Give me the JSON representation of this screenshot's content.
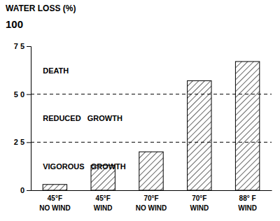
{
  "chart_data": {
    "type": "bar",
    "y_label": "WATER LOSS (%)",
    "y_label_note": "100",
    "categories": [
      [
        "45°F",
        "NO WIND"
      ],
      [
        "45°F",
        "WIND"
      ],
      [
        "70°F",
        "NO WIND"
      ],
      [
        "70°F",
        "WIND"
      ],
      [
        "88° F",
        "WIND"
      ]
    ],
    "values": [
      3,
      13,
      20,
      57,
      67
    ],
    "color": "white",
    "ylim": [
      0,
      75
    ],
    "yticks": [
      0,
      {
        "value": 25,
        "label": "2 5"
      },
      {
        "value": 50,
        "label": "5 0"
      },
      {
        "value": 75,
        "label": "7 5"
      }
    ],
    "grid": false,
    "hlines": [
      25,
      50
    ],
    "annotations": [
      {
        "text": "DEATH",
        "y": 62
      },
      {
        "text": "REDUCED   GROWTH",
        "y": 37
      },
      {
        "text": "VIGOROUS   GROWTH",
        "y": 12
      }
    ]
  }
}
